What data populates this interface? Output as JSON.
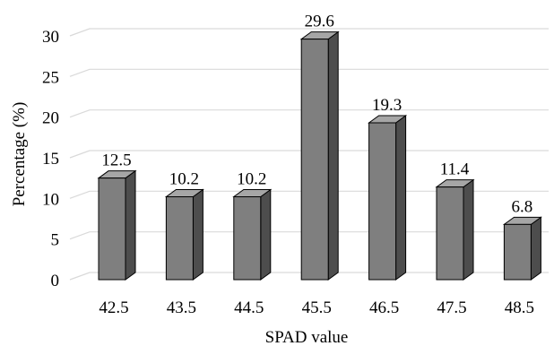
{
  "chart_data": {
    "type": "bar",
    "style": "3d-column",
    "categories": [
      "42.5",
      "43.5",
      "44.5",
      "45.5",
      "46.5",
      "47.5",
      "48.5"
    ],
    "values": [
      12.5,
      10.2,
      10.2,
      29.6,
      19.3,
      11.4,
      6.8
    ],
    "data_labels": [
      "12.5",
      "10.2",
      "10.2",
      "29.6",
      "19.3",
      "11.4",
      "6.8"
    ],
    "xlabel": "SPAD value",
    "ylabel": "Percentage (%)",
    "ylim": [
      0,
      30
    ],
    "yticks": [
      "0",
      "5",
      "10",
      "15",
      "20",
      "25",
      "30"
    ],
    "grid": true,
    "legend": "none",
    "colors": {
      "bar_front": "#7f7f7f",
      "bar_side": "#4d4d4d",
      "bar_top": "#a6a6a6",
      "bar_outline": "#000000",
      "grid": "#d9d9d9"
    }
  }
}
